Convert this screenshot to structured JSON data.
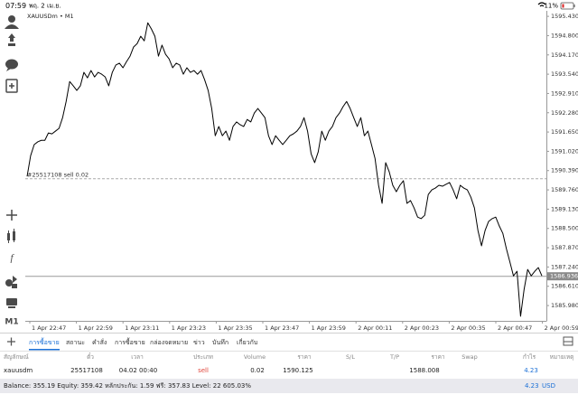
{
  "status_bar": {
    "time": "07:59",
    "date": "พฤ. 2 เม.ย.",
    "battery": "11%"
  },
  "toolbar": {
    "timeframe": "M1"
  },
  "chart_data": {
    "type": "line",
    "title": "XAUUSDm • M1",
    "color": "#000000",
    "values": [
      1590.2,
      1590.88,
      1591.24,
      1591.33,
      1591.38,
      1591.38,
      1591.62,
      1591.59,
      1591.68,
      1591.77,
      1592.12,
      1592.65,
      1593.3,
      1593.16,
      1593.01,
      1593.16,
      1593.6,
      1593.42,
      1593.66,
      1593.45,
      1593.6,
      1593.54,
      1593.45,
      1593.16,
      1593.6,
      1593.84,
      1593.9,
      1593.75,
      1593.95,
      1594.13,
      1594.43,
      1594.54,
      1594.78,
      1594.63,
      1595.22,
      1595.02,
      1594.78,
      1594.13,
      1594.49,
      1594.19,
      1594.04,
      1593.75,
      1593.9,
      1593.84,
      1593.54,
      1593.75,
      1593.6,
      1593.66,
      1593.54,
      1593.66,
      1593.36,
      1593.01,
      1592.42,
      1591.53,
      1591.83,
      1591.53,
      1591.68,
      1591.38,
      1591.83,
      1591.98,
      1591.89,
      1591.83,
      1592.06,
      1591.98,
      1592.27,
      1592.42,
      1592.27,
      1592.12,
      1591.53,
      1591.24,
      1591.53,
      1591.38,
      1591.24,
      1591.38,
      1591.53,
      1591.59,
      1591.68,
      1591.83,
      1592.12,
      1591.68,
      1590.94,
      1590.65,
      1591.0,
      1591.68,
      1591.38,
      1591.68,
      1591.83,
      1592.12,
      1592.27,
      1592.48,
      1592.65,
      1592.42,
      1592.12,
      1591.83,
      1592.12,
      1591.53,
      1591.68,
      1591.24,
      1590.79,
      1589.91,
      1589.32,
      1590.65,
      1590.35,
      1589.91,
      1589.7,
      1589.91,
      1590.06,
      1589.32,
      1589.41,
      1589.17,
      1588.87,
      1588.82,
      1588.93,
      1589.61,
      1589.76,
      1589.82,
      1589.91,
      1589.88,
      1589.94,
      1590.0,
      1589.76,
      1589.47,
      1589.91,
      1589.82,
      1589.76,
      1589.52,
      1589.17,
      1588.43,
      1587.93,
      1588.43,
      1588.73,
      1588.82,
      1588.87,
      1588.58,
      1588.34,
      1587.84,
      1587.4,
      1586.95,
      1587.1,
      1585.63,
      1586.51,
      1587.16,
      1586.95,
      1587.1,
      1587.22,
      1586.95
    ],
    "ylim": [
      1585.48,
      1595.61
    ],
    "yticks": [
      {
        "value": 1595.43,
        "label": "1595.430"
      },
      {
        "value": 1594.8,
        "label": "1594.800"
      },
      {
        "value": 1594.17,
        "label": "1594.170"
      },
      {
        "value": 1593.54,
        "label": "1593.540"
      },
      {
        "value": 1592.91,
        "label": "1592.910"
      },
      {
        "value": 1592.28,
        "label": "1592.280"
      },
      {
        "value": 1591.65,
        "label": "1591.650"
      },
      {
        "value": 1591.02,
        "label": "1591.020"
      },
      {
        "value": 1590.39,
        "label": "1590.390"
      },
      {
        "value": 1589.76,
        "label": "1589.760"
      },
      {
        "value": 1589.13,
        "label": "1589.130"
      },
      {
        "value": 1588.5,
        "label": "1588.500"
      },
      {
        "value": 1587.87,
        "label": "1587.870"
      },
      {
        "value": 1587.24,
        "label": "1587.240"
      },
      {
        "value": 1586.61,
        "label": "1586.610"
      },
      {
        "value": 1585.98,
        "label": "1585.980"
      }
    ],
    "xticks": [
      "1 Apr 22:47",
      "1 Apr 22:59",
      "1 Apr 23:11",
      "1 Apr 23:23",
      "1 Apr 23:35",
      "1 Apr 23:47",
      "1 Apr 23:59",
      "2 Apr 00:11",
      "2 Apr 00:23",
      "2 Apr 00:35",
      "2 Apr 00:47",
      "2 Apr 00:59"
    ],
    "current_price": 1586.936,
    "order_line": {
      "label": "#25517108 sell 0.02",
      "price": 1590.125
    }
  },
  "tabs": [
    "การซื้อขาย",
    "สถานะ",
    "คำสั่ง",
    "การซื้อขาย",
    "กล่องจดหมาย",
    "ข่าว",
    "บันทึก",
    "เกี่ยวกับ"
  ],
  "table": {
    "columns": [
      "สัญลักษณ์",
      "ตั๋ว",
      "เวลา",
      "ประเภท",
      "Volume",
      "ราคา",
      "S/L",
      "T/P",
      "ราคา",
      "Swap",
      "กำไร",
      "หมายเหตุ"
    ],
    "rows": [
      {
        "symbol": "xauusdm",
        "ticket": "25517108",
        "time": "04.02 00:40",
        "type": "sell",
        "volume": "0.02",
        "open_price": "1590.125",
        "price": "1588.008",
        "profit": "4.23"
      }
    ]
  },
  "footer": {
    "summary": "Balance: 355.19 Equity: 359.42 หลักประกัน: 1.59 ฟรี: 357.83 Level: 22 605.03%",
    "profit": "4.23",
    "currency": "USD"
  }
}
